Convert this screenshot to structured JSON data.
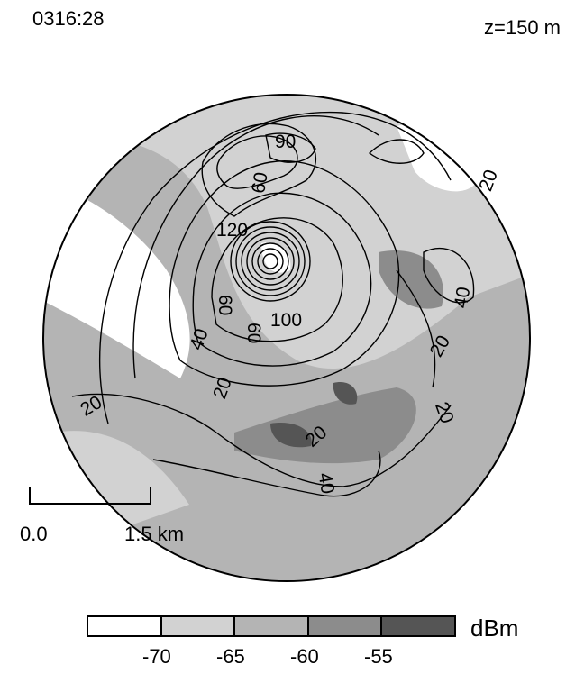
{
  "header": {
    "timestamp": "0316:28",
    "height_label": "z=150 m"
  },
  "scale_bar": {
    "left_label": "0.0",
    "right_label": "1.5 km"
  },
  "contour_labels": [
    "90",
    "60",
    "120",
    "60",
    "60",
    "100",
    "40",
    "20",
    "20",
    "40",
    "20",
    "20",
    "20",
    "40",
    "20"
  ],
  "colorbar": {
    "unit": "dBm",
    "ticks": [
      "-70",
      "-65",
      "-60",
      "-55"
    ],
    "colors": [
      "#ffffff",
      "#d2d2d2",
      "#b4b4b4",
      "#8c8c8c",
      "#555555"
    ]
  }
}
